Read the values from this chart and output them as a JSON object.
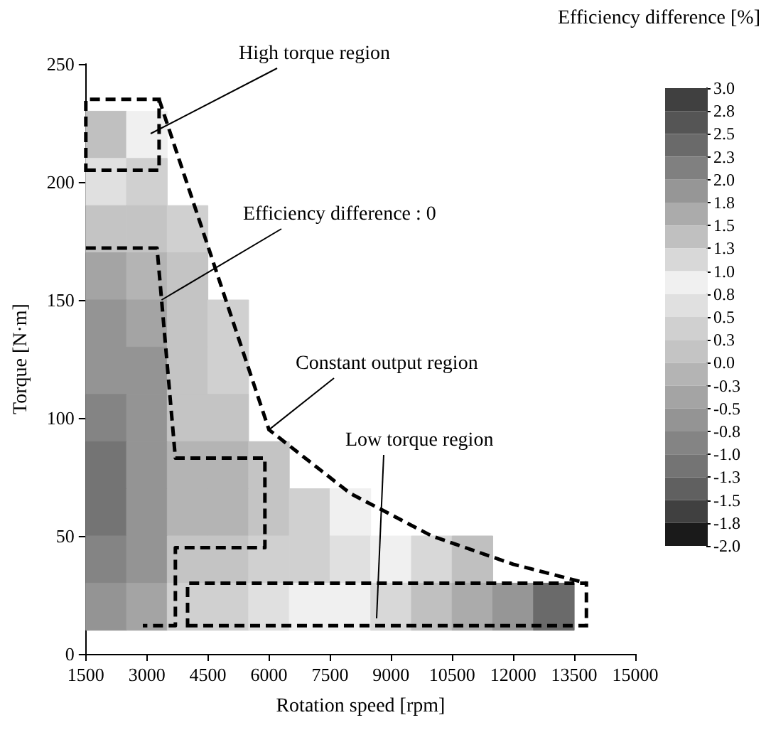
{
  "chart_data": {
    "type": "heatmap",
    "xlabel": "Rotation speed [rpm]",
    "ylabel": "Torque [N·m]",
    "clabel": "Efficiency difference [%]",
    "x": [
      2000,
      3000,
      4000,
      5000,
      6000,
      7000,
      8000,
      9000,
      10000,
      11000,
      12000,
      13000
    ],
    "y": [
      220,
      200,
      180,
      160,
      140,
      120,
      100,
      80,
      60,
      40,
      20
    ],
    "cells": [
      [
        1.3,
        0.9,
        null,
        null,
        null,
        null,
        null,
        null,
        null,
        null,
        null,
        null
      ],
      [
        0.6,
        0.5,
        null,
        null,
        null,
        null,
        null,
        null,
        null,
        null,
        null,
        null
      ],
      [
        0.1,
        0.2,
        0.3,
        null,
        null,
        null,
        null,
        null,
        null,
        null,
        null,
        null
      ],
      [
        -0.3,
        -0.1,
        0.2,
        null,
        null,
        null,
        null,
        null,
        null,
        null,
        null,
        null
      ],
      [
        -0.5,
        -0.3,
        0.1,
        0.4,
        null,
        null,
        null,
        null,
        null,
        null,
        null,
        null
      ],
      [
        -0.7,
        -0.5,
        0.1,
        0.3,
        null,
        null,
        null,
        null,
        null,
        null,
        null,
        null
      ],
      [
        -0.9,
        -0.6,
        0.1,
        0.2,
        null,
        null,
        null,
        null,
        null,
        null,
        null,
        null
      ],
      [
        -1.0,
        -0.6,
        -0.1,
        -0.1,
        0.1,
        null,
        null,
        null,
        null,
        null,
        null,
        null
      ],
      [
        -1.0,
        -0.6,
        -0.2,
        -0.1,
        0.1,
        0.5,
        0.8,
        null,
        null,
        null,
        null,
        null
      ],
      [
        -0.9,
        -0.5,
        0.1,
        0.2,
        0.3,
        0.5,
        0.7,
        0.9,
        1.1,
        1.3,
        null,
        null
      ],
      [
        -0.6,
        -0.3,
        0.3,
        0.5,
        0.6,
        0.8,
        1.0,
        1.2,
        1.4,
        1.7,
        2.0,
        2.4
      ]
    ],
    "xlim": [
      1500,
      15000
    ],
    "xticks": [
      1500,
      3000,
      4500,
      6000,
      7500,
      9000,
      10500,
      12000,
      13500,
      15000
    ],
    "ylim": [
      0,
      250
    ],
    "yticks": [
      0,
      50,
      100,
      150,
      200,
      250
    ],
    "clim": [
      -2.0,
      3.0
    ],
    "cticks": [
      {
        "value": 3,
        "label": "3.0"
      },
      {
        "value": 2.75,
        "label": "2.8"
      },
      {
        "value": 2.5,
        "label": "2.5"
      },
      {
        "value": 2.25,
        "label": "2.3"
      },
      {
        "value": 2,
        "label": "2.0"
      },
      {
        "value": 1.75,
        "label": "1.8"
      },
      {
        "value": 1.5,
        "label": "1.5"
      },
      {
        "value": 1.25,
        "label": "1.3"
      },
      {
        "value": 1,
        "label": "1.0"
      },
      {
        "value": 0.75,
        "label": "0.8"
      },
      {
        "value": 0.5,
        "label": "0.5"
      },
      {
        "value": 0.25,
        "label": "0.3"
      },
      {
        "value": 0,
        "label": "0.0"
      },
      {
        "value": -0.25,
        "label": "-0.3"
      },
      {
        "value": -0.5,
        "label": "-0.5"
      },
      {
        "value": -0.75,
        "label": "-0.8"
      },
      {
        "value": -1,
        "label": "-1.0"
      },
      {
        "value": -1.25,
        "label": "-1.3"
      },
      {
        "value": -1.5,
        "label": "-1.5"
      },
      {
        "value": -1.75,
        "label": "-1.8"
      },
      {
        "value": -2,
        "label": "-2.0"
      }
    ],
    "colors": [
      "#404040",
      "#555555",
      "#6a6a6a",
      "#808080",
      "#969696",
      "#ababab",
      "#c0c0c0",
      "#d8d8d8",
      "#f0f0f0",
      "#e0e0e0",
      "#d0d0d0",
      "#c4c4c4",
      "#b4b4b4",
      "#a4a4a4",
      "#949494",
      "#848484",
      "#747474",
      "#606060",
      "#404040",
      "#1a1a1a"
    ],
    "series": [
      {
        "type": "line",
        "line_style": "dashed",
        "color": "#000000",
        "x": [
          1500,
          3250,
          3700,
          5900,
          5900,
          3700,
          3700,
          2900
        ],
        "values": [
          172,
          172,
          83,
          83,
          45,
          45,
          12,
          12
        ]
      },
      {
        "type": "line",
        "line_style": "dashed",
        "color": "#000000",
        "x": [
          3300,
          6000,
          8000,
          10000,
          12000,
          13800
        ],
        "values": [
          235,
          95,
          68,
          50,
          38,
          30
        ]
      }
    ],
    "annotations": [
      "High torque region",
      {
        "text": "Efficiency difference : 0",
        "x": 3361,
        "y": 150
      },
      {
        "text": "Constant output region",
        "x": 6000,
        "y": 95
      },
      "Low torque region"
    ]
  }
}
